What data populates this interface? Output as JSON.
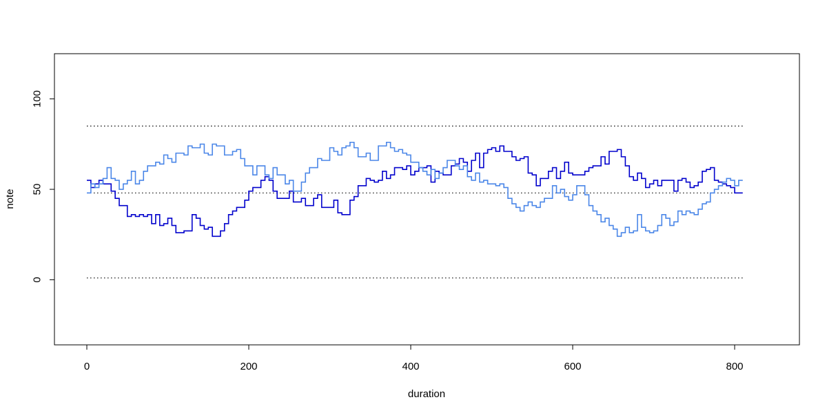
{
  "chart_data": {
    "type": "line",
    "subtype": "step",
    "title": "",
    "xlabel": "duration",
    "ylabel": "note",
    "xlim": [
      -40,
      880
    ],
    "ylim": [
      -36,
      125
    ],
    "xticks": [
      0,
      200,
      400,
      600,
      800
    ],
    "yticks": [
      0,
      50,
      100
    ],
    "grid": false,
    "legend": "none",
    "reference_lines": [
      {
        "y": 1,
        "x_range": [
          0,
          810
        ],
        "style": "dotted",
        "color": "#000000"
      },
      {
        "y": 48,
        "x_range": [
          0,
          810
        ],
        "style": "dotted",
        "color": "#000000"
      },
      {
        "y": 85,
        "x_range": [
          0,
          810
        ],
        "style": "dotted",
        "color": "#000000"
      }
    ],
    "series": [
      {
        "color": "#0000cc",
        "x": [
          0,
          5,
          10,
          15,
          20,
          25,
          30,
          35,
          40,
          45,
          50,
          55,
          60,
          65,
          70,
          75,
          80,
          85,
          90,
          95,
          100,
          105,
          110,
          115,
          120,
          125,
          130,
          135,
          140,
          145,
          150,
          155,
          160,
          165,
          170,
          175,
          180,
          185,
          190,
          195,
          200,
          205,
          210,
          215,
          220,
          225,
          230,
          235,
          240,
          245,
          250,
          255,
          260,
          265,
          270,
          275,
          280,
          285,
          290,
          295,
          300,
          305,
          310,
          315,
          320,
          325,
          330,
          335,
          340,
          345,
          350,
          355,
          360,
          365,
          370,
          375,
          380,
          385,
          390,
          395,
          400,
          405,
          410,
          415,
          420,
          425,
          430,
          435,
          440,
          445,
          450,
          455,
          460,
          465,
          470,
          475,
          480,
          485,
          490,
          495,
          500,
          505,
          510,
          515,
          520,
          525,
          530,
          535,
          540,
          545,
          550,
          555,
          560,
          565,
          570,
          575,
          580,
          585,
          590,
          595,
          600,
          605,
          610,
          615,
          620,
          625,
          630,
          635,
          640,
          645,
          650,
          655,
          660,
          665,
          670,
          675,
          680,
          685,
          690,
          695,
          700,
          705,
          710,
          715,
          720,
          725,
          730,
          735,
          740,
          745,
          750,
          755,
          760,
          765,
          770,
          775,
          780,
          785,
          790,
          795,
          800,
          805
        ],
        "y": [
          55,
          51,
          53,
          55,
          53,
          53,
          49,
          45,
          41,
          41,
          35,
          36,
          35,
          36,
          35,
          36,
          31,
          36,
          30,
          31,
          34,
          30,
          26,
          26,
          27,
          27,
          36,
          34,
          30,
          28,
          29,
          24,
          24,
          27,
          31,
          36,
          38,
          40,
          40,
          44,
          49,
          51,
          51,
          55,
          57,
          55,
          49,
          45,
          45,
          45,
          49,
          43,
          43,
          45,
          41,
          41,
          45,
          47,
          40,
          40,
          40,
          44,
          37,
          36,
          36,
          44,
          46,
          52,
          52,
          56,
          55,
          54,
          55,
          60,
          56,
          58,
          62,
          62,
          61,
          63,
          58,
          60,
          62,
          62,
          63,
          54,
          60,
          59,
          58,
          58,
          63,
          64,
          67,
          65,
          60,
          66,
          70,
          62,
          70,
          72,
          73,
          71,
          74,
          71,
          71,
          68,
          66,
          67,
          68,
          59,
          58,
          52,
          56,
          56,
          60,
          62,
          56,
          60,
          65,
          59,
          58,
          58,
          58,
          60,
          62,
          63,
          63,
          68,
          64,
          71,
          71,
          72,
          68,
          63,
          57,
          55,
          59,
          56,
          51,
          53,
          55,
          52,
          55,
          55,
          55,
          49,
          55,
          56,
          54,
          51,
          52,
          54,
          60,
          61,
          62,
          55,
          54,
          53,
          52,
          51,
          48,
          48
        ]
      },
      {
        "color": "#4a86e8",
        "x": [
          0,
          5,
          10,
          15,
          20,
          25,
          30,
          35,
          40,
          45,
          50,
          55,
          60,
          65,
          70,
          75,
          80,
          85,
          90,
          95,
          100,
          105,
          110,
          115,
          120,
          125,
          130,
          135,
          140,
          145,
          150,
          155,
          160,
          165,
          170,
          175,
          180,
          185,
          190,
          195,
          200,
          205,
          210,
          215,
          220,
          225,
          230,
          235,
          240,
          245,
          250,
          255,
          260,
          265,
          270,
          275,
          280,
          285,
          290,
          295,
          300,
          305,
          310,
          315,
          320,
          325,
          330,
          335,
          340,
          345,
          350,
          355,
          360,
          365,
          370,
          375,
          380,
          385,
          390,
          395,
          400,
          405,
          410,
          415,
          420,
          425,
          430,
          435,
          440,
          445,
          450,
          455,
          460,
          465,
          470,
          475,
          480,
          485,
          490,
          495,
          500,
          505,
          510,
          515,
          520,
          525,
          530,
          535,
          540,
          545,
          550,
          555,
          560,
          565,
          570,
          575,
          580,
          585,
          590,
          595,
          600,
          605,
          610,
          615,
          620,
          625,
          630,
          635,
          640,
          645,
          650,
          655,
          660,
          665,
          670,
          675,
          680,
          685,
          690,
          695,
          700,
          705,
          710,
          715,
          720,
          725,
          730,
          735,
          740,
          745,
          750,
          755,
          760,
          765,
          770,
          775,
          780,
          785,
          790,
          795,
          800,
          805
        ],
        "y": [
          48,
          53,
          51,
          53,
          56,
          62,
          56,
          55,
          50,
          53,
          55,
          60,
          53,
          55,
          60,
          63,
          63,
          65,
          64,
          69,
          67,
          65,
          70,
          70,
          69,
          74,
          73,
          73,
          75,
          70,
          69,
          75,
          74,
          74,
          69,
          69,
          71,
          72,
          67,
          63,
          63,
          58,
          63,
          63,
          58,
          56,
          62,
          58,
          58,
          53,
          55,
          49,
          49,
          54,
          59,
          62,
          62,
          67,
          66,
          66,
          73,
          71,
          69,
          73,
          74,
          76,
          73,
          68,
          68,
          70,
          66,
          66,
          74,
          74,
          76,
          73,
          71,
          72,
          70,
          69,
          65,
          65,
          62,
          60,
          58,
          61,
          56,
          59,
          62,
          66,
          66,
          63,
          61,
          63,
          57,
          55,
          59,
          54,
          55,
          53,
          53,
          52,
          53,
          51,
          45,
          42,
          40,
          38,
          41,
          43,
          41,
          40,
          43,
          45,
          45,
          52,
          48,
          50,
          46,
          44,
          47,
          52,
          52,
          47,
          41,
          38,
          36,
          32,
          34,
          30,
          28,
          24,
          26,
          29,
          26,
          27,
          36,
          29,
          27,
          26,
          27,
          30,
          36,
          34,
          30,
          32,
          38,
          36,
          38,
          37,
          36,
          39,
          42,
          43,
          48,
          50,
          52,
          54,
          56,
          55,
          52,
          55
        ]
      }
    ]
  }
}
